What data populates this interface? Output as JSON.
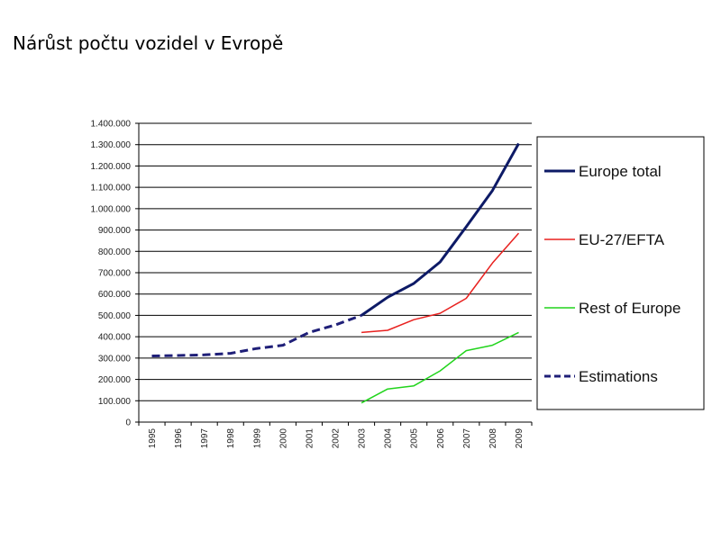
{
  "page": {
    "title": "Nárůst počtu vozidel v Evropě"
  },
  "chart_data": {
    "type": "line",
    "x": [
      "1995",
      "1996",
      "1997",
      "1998",
      "1999",
      "2000",
      "2001",
      "2002",
      "2003",
      "2004",
      "2005",
      "2006",
      "2007",
      "2008",
      "2009"
    ],
    "ylim": [
      0,
      1400000
    ],
    "yticks": [
      0,
      100000,
      200000,
      300000,
      400000,
      500000,
      600000,
      700000,
      800000,
      900000,
      1000000,
      1100000,
      1200000,
      1300000,
      1400000
    ],
    "ytick_labels": [
      "0",
      "100.000",
      "200.000",
      "300.000",
      "400.000",
      "500.000",
      "600.000",
      "700.000",
      "800.000",
      "900.000",
      "1.000.000",
      "1.100.000",
      "1.200.000",
      "1.300.000",
      "1.400.000"
    ],
    "grid": true,
    "legend_position": "right",
    "series": [
      {
        "name": "Europe total",
        "color": "#0d1a66",
        "style": "solid",
        "values": [
          null,
          null,
          null,
          null,
          null,
          null,
          null,
          null,
          500000,
          585000,
          650000,
          750000,
          915000,
          1085000,
          1305000
        ]
      },
      {
        "name": "EU-27/EFTA",
        "color": "#e8211f",
        "style": "solid",
        "values": [
          null,
          null,
          null,
          null,
          null,
          null,
          null,
          null,
          420000,
          430000,
          480000,
          510000,
          580000,
          745000,
          885000
        ]
      },
      {
        "name": "Rest of Europe",
        "color": "#21d41c",
        "style": "solid",
        "values": [
          null,
          null,
          null,
          null,
          null,
          null,
          null,
          null,
          90000,
          155000,
          170000,
          240000,
          335000,
          360000,
          420000
        ]
      },
      {
        "name": "Estimations",
        "color": "#1f1f78",
        "style": "dashed",
        "values": [
          310000,
          312000,
          315000,
          322000,
          345000,
          360000,
          420000,
          455000,
          500000,
          null,
          null,
          null,
          null,
          null,
          null
        ]
      }
    ]
  }
}
